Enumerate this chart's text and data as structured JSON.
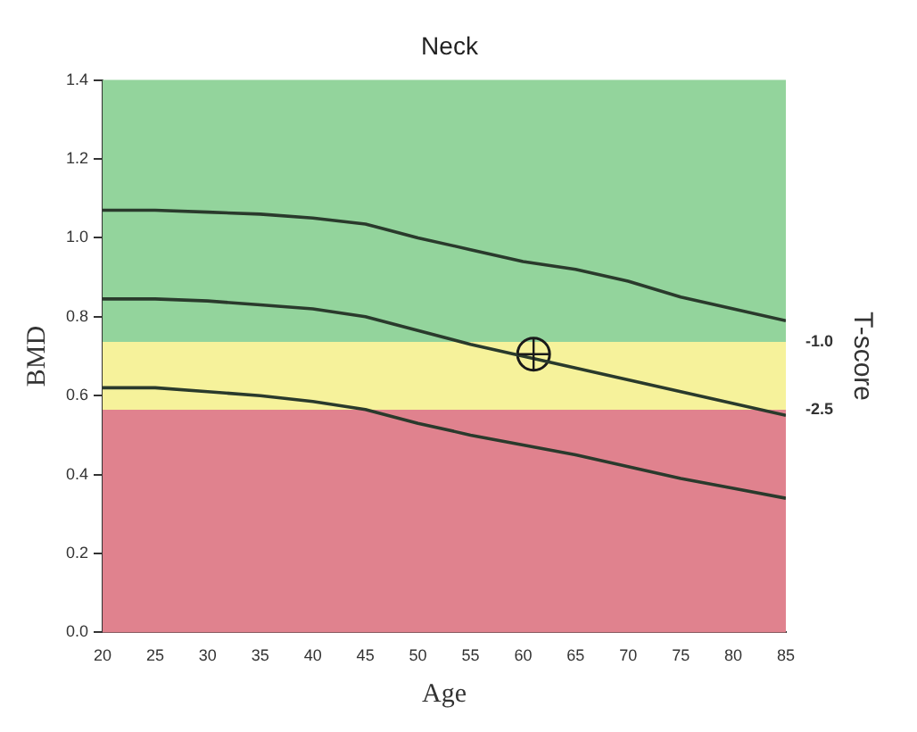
{
  "chart_data": {
    "type": "line",
    "title": "Neck",
    "xlabel": "Age",
    "ylabel": "BMD",
    "y2label": "T-score",
    "x": [
      20,
      25,
      30,
      35,
      40,
      45,
      50,
      55,
      60,
      65,
      70,
      75,
      80,
      85
    ],
    "series": [
      {
        "color": "#2a3a2c",
        "values": [
          1.07,
          1.07,
          1.065,
          1.06,
          1.05,
          1.035,
          1.0,
          0.97,
          0.94,
          0.92,
          0.89,
          0.85,
          0.82,
          0.79
        ]
      },
      {
        "color": "#2a3a2c",
        "values": [
          0.845,
          0.845,
          0.84,
          0.83,
          0.82,
          0.8,
          0.765,
          0.73,
          0.7,
          0.67,
          0.64,
          0.61,
          0.58,
          0.55
        ]
      },
      {
        "color": "#2a3a2c",
        "values": [
          0.62,
          0.62,
          0.61,
          0.6,
          0.585,
          0.565,
          0.53,
          0.5,
          0.475,
          0.45,
          0.42,
          0.39,
          0.365,
          0.34
        ]
      },
      {
        "type": "scatter",
        "color": "#1a1a1a",
        "x": [
          61
        ],
        "values": [
          0.705
        ],
        "marker": "circle"
      }
    ],
    "bands": [
      {
        "axis": "y2",
        "from": -1.0,
        "to": 4.79,
        "color": "#93d49c"
      },
      {
        "axis": "y2",
        "from": -2.5,
        "to": -1.0,
        "color": "#f6f29b"
      },
      {
        "axis": "y2",
        "from": -7.42,
        "to": -2.5,
        "color": "#e0828e"
      }
    ],
    "xlim": [
      20,
      85
    ],
    "xticks": [
      20,
      25,
      30,
      35,
      40,
      45,
      50,
      55,
      60,
      65,
      70,
      75,
      80,
      85
    ],
    "ylim": [
      0,
      1.4
    ],
    "yticks": [
      {
        "value": 0,
        "label": "0.0"
      },
      0.2,
      0.4,
      0.6,
      0.8,
      {
        "value": 1,
        "label": "1.0"
      },
      1.2,
      1.4
    ],
    "y2lim": [
      -7.42,
      4.79
    ],
    "y2ticks": [
      {
        "value": -1,
        "label": "-1.0"
      },
      -2.5
    ],
    "grid": false,
    "legend": false,
    "line_style": "solid"
  }
}
